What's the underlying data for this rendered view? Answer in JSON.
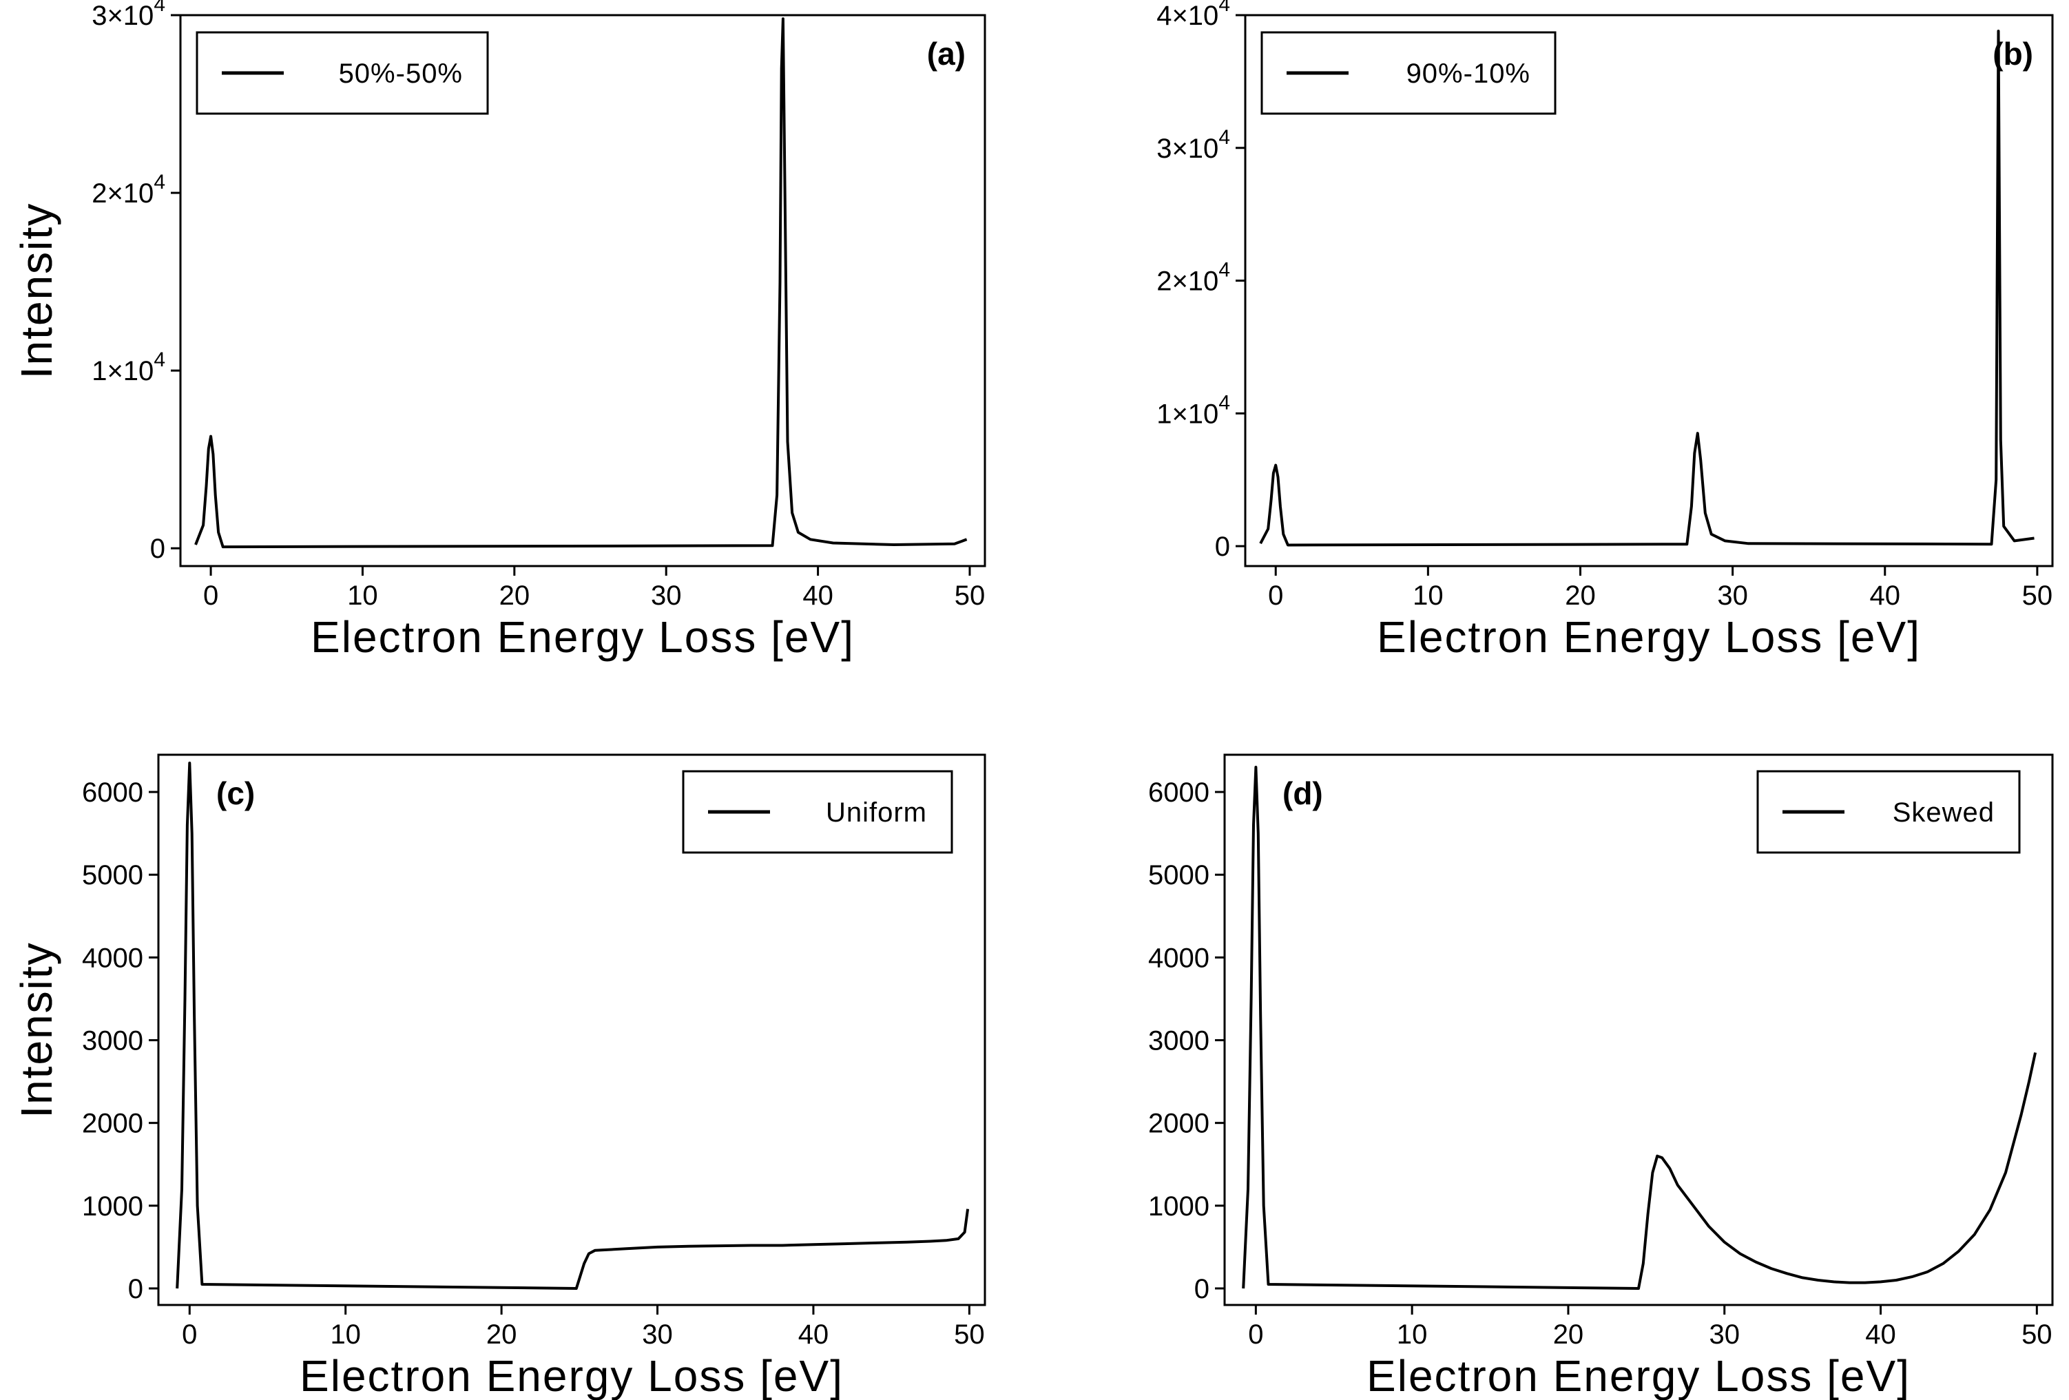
{
  "chart_data": [
    {
      "type": "line",
      "panel_label": "(a)",
      "xlabel": "Electron Energy Loss [eV]",
      "ylabel": "Intensity",
      "xlim": [
        -2,
        51
      ],
      "ylim": [
        -1000,
        30000
      ],
      "xticks": [
        0,
        10,
        20,
        30,
        40,
        50
      ],
      "xtick_labels": [
        "0",
        "10",
        "20",
        "30",
        "40",
        "50"
      ],
      "yticks": [
        0,
        10000,
        20000,
        30000
      ],
      "ytick_labels": [
        {
          "mantissa": "0",
          "exponent": ""
        },
        {
          "mantissa": "1×10",
          "exponent": "4"
        },
        {
          "mantissa": "2×10",
          "exponent": "4"
        },
        {
          "mantissa": "3×10",
          "exponent": "4"
        }
      ],
      "grid": false,
      "legend_position": "top-left",
      "series": [
        {
          "name": "50%-50%",
          "color": "#000000",
          "x": [
            -1.0,
            -0.5,
            -0.3,
            -0.15,
            0.0,
            0.15,
            0.3,
            0.5,
            0.8,
            37.0,
            37.3,
            37.5,
            37.6,
            37.7,
            37.85,
            38.0,
            38.3,
            38.7,
            39.5,
            41.0,
            45.0,
            49.0,
            49.8
          ],
          "y": [
            200,
            1300,
            3500,
            5600,
            6300,
            5300,
            3000,
            900,
            80,
            150,
            3000,
            15000,
            27000,
            29800,
            18000,
            6000,
            2000,
            900,
            500,
            300,
            200,
            250,
            500
          ]
        }
      ]
    },
    {
      "type": "line",
      "panel_label": "(b)",
      "xlabel": "Electron Energy Loss [eV]",
      "ylabel": "Intensity",
      "xlim": [
        -2,
        51
      ],
      "ylim": [
        -1500,
        40000
      ],
      "xticks": [
        0,
        10,
        20,
        30,
        40,
        50
      ],
      "xtick_labels": [
        "0",
        "10",
        "20",
        "30",
        "40",
        "50"
      ],
      "yticks": [
        0,
        10000,
        20000,
        30000,
        40000
      ],
      "ytick_labels": [
        {
          "mantissa": "0",
          "exponent": ""
        },
        {
          "mantissa": "1×10",
          "exponent": "4"
        },
        {
          "mantissa": "2×10",
          "exponent": "4"
        },
        {
          "mantissa": "3×10",
          "exponent": "4"
        },
        {
          "mantissa": "4×10",
          "exponent": "4"
        }
      ],
      "grid": false,
      "legend_position": "top-left",
      "series": [
        {
          "name": "90%-10%",
          "color": "#000000",
          "x": [
            -1.0,
            -0.5,
            -0.3,
            -0.15,
            0.0,
            0.15,
            0.3,
            0.5,
            0.8,
            27.0,
            27.3,
            27.5,
            27.7,
            27.9,
            28.2,
            28.6,
            29.5,
            31.0,
            47.0,
            47.3,
            47.45,
            47.6,
            47.8,
            48.5,
            49.8
          ],
          "y": [
            200,
            1300,
            3500,
            5500,
            6100,
            5200,
            3000,
            900,
            80,
            150,
            3000,
            7000,
            8500,
            6500,
            2500,
            900,
            400,
            200,
            150,
            5000,
            38800,
            8000,
            1500,
            400,
            600
          ]
        }
      ]
    },
    {
      "type": "line",
      "panel_label": "(c)",
      "xlabel": "Electron Energy Loss [eV]",
      "ylabel": "Intensity",
      "xlim": [
        -2,
        51
      ],
      "ylim": [
        -200,
        6450
      ],
      "xticks": [
        0,
        10,
        20,
        30,
        40,
        50
      ],
      "xtick_labels": [
        "0",
        "10",
        "20",
        "30",
        "40",
        "50"
      ],
      "yticks": [
        0,
        1000,
        2000,
        3000,
        4000,
        5000,
        6000
      ],
      "ytick_labels": [
        {
          "mantissa": "0",
          "exponent": ""
        },
        {
          "mantissa": "1000",
          "exponent": ""
        },
        {
          "mantissa": "2000",
          "exponent": ""
        },
        {
          "mantissa": "3000",
          "exponent": ""
        },
        {
          "mantissa": "4000",
          "exponent": ""
        },
        {
          "mantissa": "5000",
          "exponent": ""
        },
        {
          "mantissa": "6000",
          "exponent": ""
        }
      ],
      "grid": false,
      "legend_position": "top-right",
      "series": [
        {
          "name": "Uniform",
          "color": "#000000",
          "x": [
            -0.8,
            -0.5,
            -0.3,
            -0.15,
            0.0,
            0.15,
            0.3,
            0.5,
            0.8,
            24.8,
            25.0,
            25.3,
            25.6,
            26.0,
            28.0,
            30.0,
            32.0,
            34.0,
            36.0,
            38.0,
            40.0,
            42.0,
            44.0,
            46.0,
            47.5,
            48.5,
            49.3,
            49.7,
            49.9
          ],
          "y": [
            0,
            1200,
            3500,
            5600,
            6350,
            5500,
            3300,
            1000,
            50,
            0,
            120,
            300,
            420,
            460,
            480,
            500,
            510,
            515,
            520,
            520,
            530,
            540,
            550,
            560,
            570,
            580,
            600,
            680,
            960
          ]
        }
      ]
    },
    {
      "type": "line",
      "panel_label": "(d)",
      "xlabel": "Electron Energy Loss [eV]",
      "ylabel": "Intensity",
      "xlim": [
        -2,
        51
      ],
      "ylim": [
        -200,
        6450
      ],
      "xticks": [
        0,
        10,
        20,
        30,
        40,
        50
      ],
      "xtick_labels": [
        "0",
        "10",
        "20",
        "30",
        "40",
        "50"
      ],
      "yticks": [
        0,
        1000,
        2000,
        3000,
        4000,
        5000,
        6000
      ],
      "ytick_labels": [
        {
          "mantissa": "0",
          "exponent": ""
        },
        {
          "mantissa": "1000",
          "exponent": ""
        },
        {
          "mantissa": "2000",
          "exponent": ""
        },
        {
          "mantissa": "3000",
          "exponent": ""
        },
        {
          "mantissa": "4000",
          "exponent": ""
        },
        {
          "mantissa": "5000",
          "exponent": ""
        },
        {
          "mantissa": "6000",
          "exponent": ""
        }
      ],
      "grid": false,
      "legend_position": "top-right",
      "series": [
        {
          "name": "Skewed",
          "color": "#000000",
          "x": [
            -0.8,
            -0.5,
            -0.3,
            -0.15,
            0.0,
            0.15,
            0.3,
            0.5,
            0.8,
            24.5,
            24.8,
            25.1,
            25.4,
            25.7,
            26.0,
            26.5,
            27.0,
            28.0,
            29.0,
            30.0,
            31.0,
            32.0,
            33.0,
            34.0,
            35.0,
            36.0,
            37.0,
            38.0,
            39.0,
            40.0,
            41.0,
            42.0,
            43.0,
            44.0,
            45.0,
            46.0,
            47.0,
            48.0,
            49.0,
            49.5,
            49.9
          ],
          "y": [
            0,
            1200,
            3500,
            5600,
            6300,
            5500,
            3300,
            1000,
            50,
            0,
            300,
            900,
            1400,
            1600,
            1580,
            1450,
            1250,
            1000,
            750,
            560,
            420,
            320,
            240,
            180,
            130,
            100,
            80,
            70,
            70,
            80,
            100,
            140,
            200,
            300,
            450,
            650,
            950,
            1400,
            2100,
            2500,
            2850
          ]
        }
      ]
    }
  ]
}
